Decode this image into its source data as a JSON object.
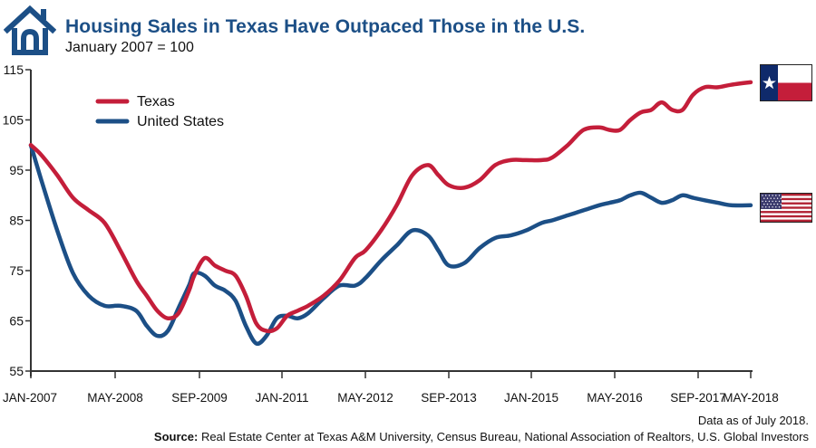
{
  "header": {
    "title": "Housing Sales in Texas Have Outpaced Those in the U.S.",
    "subtitle": "January 2007 = 100",
    "icon": "house-icon"
  },
  "footer": {
    "note": "Data as of July 2018.",
    "source_label": "Source:",
    "source_text": "Real Estate Center at Texas A&M University, Census Bureau, National Association of Realtors, U.S. Global Investors"
  },
  "flags": {
    "texas": "texas-flag-icon",
    "us": "us-flag-icon"
  },
  "colors": {
    "texas": "#c41e3a",
    "us": "#1c4f86",
    "title": "#1c4f86",
    "axis": "#333333"
  },
  "chart_data": {
    "type": "line",
    "title": "Housing Sales in Texas Have Outpaced Those in the U.S.",
    "subtitle": "January 2007 = 100",
    "xlabel": "",
    "ylabel": "",
    "ylim": [
      55,
      115
    ],
    "yticks": [
      55,
      65,
      75,
      85,
      95,
      105,
      115
    ],
    "xticks": [
      {
        "label": "JAN-2007",
        "month": 0
      },
      {
        "label": "MAY-2008",
        "month": 16
      },
      {
        "label": "SEP-2009",
        "month": 32
      },
      {
        "label": "JAN-2011",
        "month": 48
      },
      {
        "label": "MAY-2012",
        "month": 64
      },
      {
        "label": "SEP-2013",
        "month": 80
      },
      {
        "label": "JAN-2015",
        "month": 96
      },
      {
        "label": "MAY-2016",
        "month": 112
      },
      {
        "label": "SEP-2017",
        "month": 128
      },
      {
        "label": "MAY-2018",
        "month": 136
      }
    ],
    "grid": false,
    "legend": {
      "position": "top-left",
      "entries": [
        "Texas",
        "United States"
      ]
    },
    "series": [
      {
        "name": "Texas",
        "color": "#c41e3a",
        "x": [
          0,
          2,
          5,
          8,
          11,
          14,
          17,
          20,
          22,
          24,
          26,
          28,
          30,
          31,
          33,
          35,
          37,
          39,
          41,
          43,
          45,
          47,
          49,
          51,
          53,
          56,
          59,
          62,
          64,
          67,
          70,
          73,
          76,
          78,
          80,
          83,
          86,
          89,
          92,
          95,
          98,
          100,
          103,
          106,
          109,
          111,
          113,
          115,
          117,
          119,
          121,
          123,
          125,
          127,
          129,
          131,
          133,
          136
        ],
        "values": [
          100,
          98,
          94,
          89.5,
          87,
          84.5,
          79,
          73,
          70,
          67,
          65.5,
          66.5,
          71,
          74,
          77.5,
          76,
          75,
          74,
          70,
          64.5,
          63,
          63.5,
          66,
          67,
          68,
          70,
          73,
          77.5,
          79,
          83,
          88,
          94,
          96,
          94,
          92,
          91.5,
          93,
          96,
          97,
          97,
          97,
          97.5,
          100,
          103,
          103.5,
          103,
          103,
          105,
          106.5,
          107,
          108.5,
          107,
          107,
          110,
          111.5,
          111.5,
          112,
          112.5
        ]
      },
      {
        "name": "United States",
        "color": "#1c4f86",
        "x": [
          0,
          2,
          5,
          8,
          11,
          14,
          17,
          20,
          22,
          24,
          26,
          28,
          30,
          31,
          33,
          35,
          37,
          39,
          41,
          43,
          45,
          47,
          49,
          51,
          53,
          56,
          59,
          62,
          64,
          67,
          70,
          73,
          76,
          78,
          80,
          83,
          86,
          89,
          92,
          95,
          98,
          100,
          103,
          106,
          109,
          111,
          113,
          115,
          117,
          119,
          121,
          123,
          125,
          127,
          129,
          131,
          133,
          136
        ],
        "values": [
          100,
          93,
          83,
          74.5,
          70,
          68,
          68,
          67,
          64,
          62,
          63,
          67.5,
          72,
          74.5,
          74,
          72,
          71,
          69,
          64,
          60.5,
          62,
          65.5,
          66,
          65.5,
          66.5,
          69.5,
          72,
          72,
          73.5,
          77,
          80,
          83,
          82,
          79,
          76,
          76.5,
          79.5,
          81.5,
          82,
          83,
          84.5,
          85,
          86,
          87,
          88,
          88.5,
          89,
          90,
          90.5,
          89.5,
          88.5,
          89,
          90,
          89.5,
          89,
          88.5,
          88,
          88
        ]
      }
    ]
  }
}
